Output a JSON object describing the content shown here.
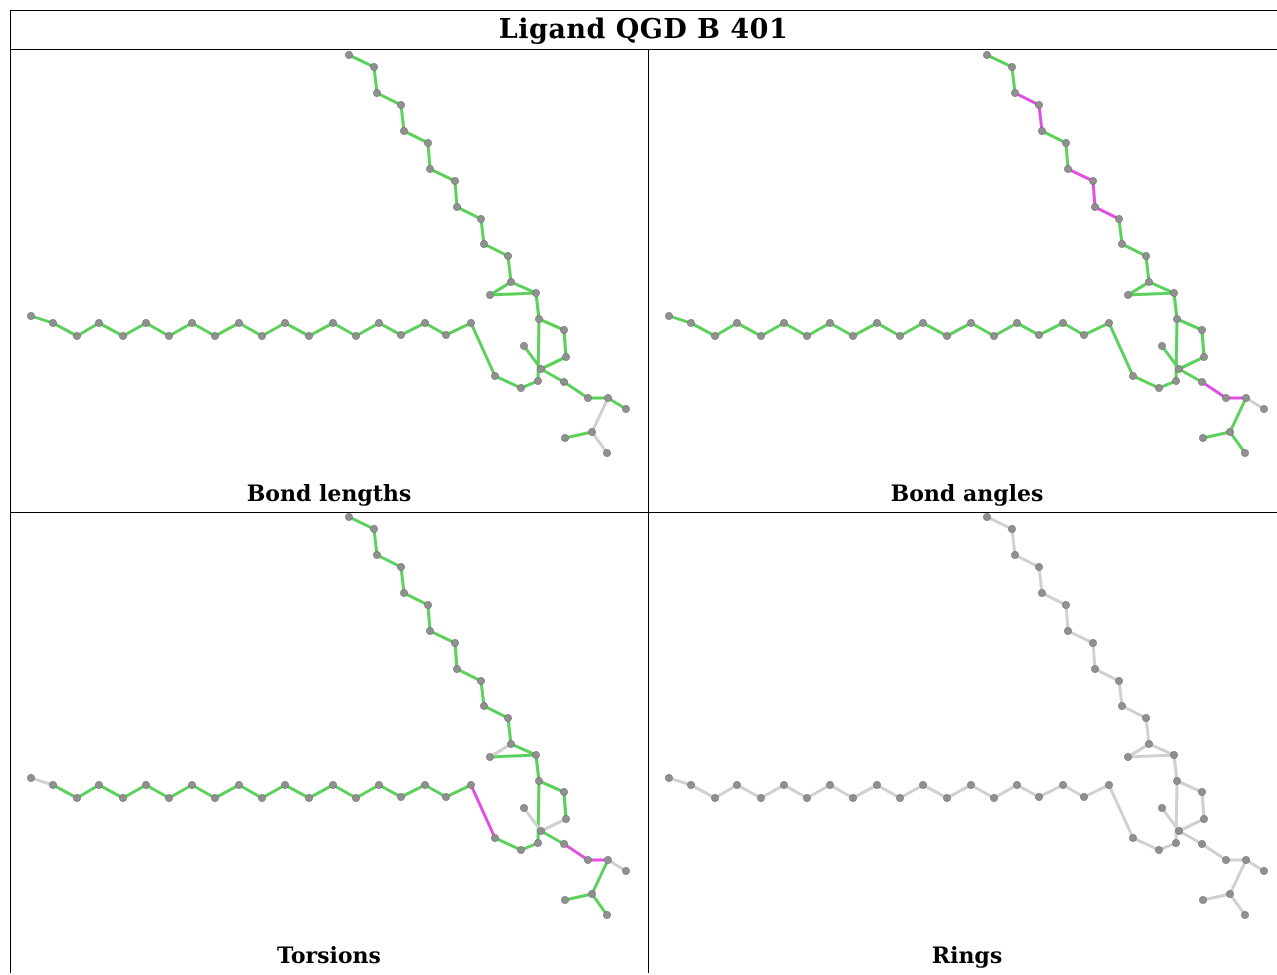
{
  "title": "Ligand QGD B 401",
  "colors": {
    "ok_bond": "#5bd05b",
    "outlier_bond": "#e04fe0",
    "neutral_bond": "#d0d0d0",
    "atom": "#909090"
  },
  "panels": [
    {
      "caption": "Bond lengths",
      "mode": "lengths"
    },
    {
      "caption": "Bond angles",
      "mode": "angles"
    },
    {
      "caption": "Torsions",
      "mode": "torsions"
    },
    {
      "caption": "Rings",
      "mode": "rings"
    }
  ]
}
